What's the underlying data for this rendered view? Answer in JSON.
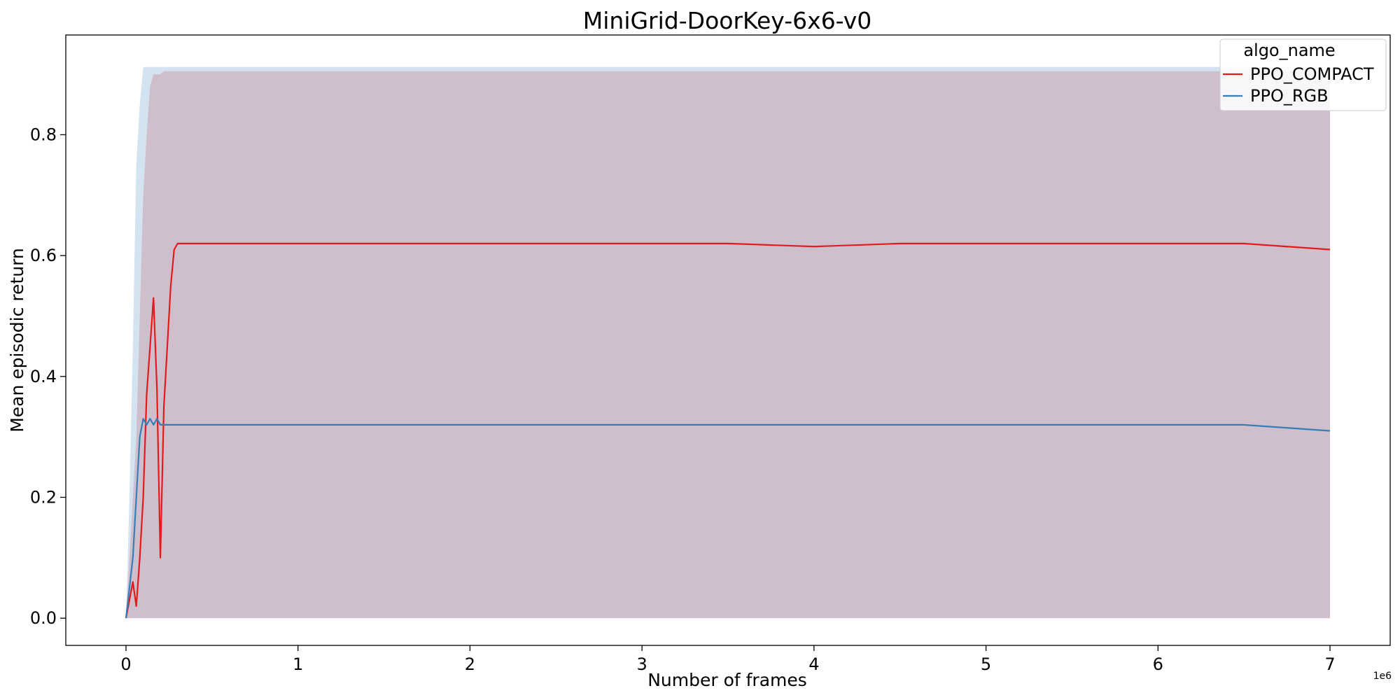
{
  "chart_data": {
    "type": "line",
    "title": "MiniGrid-DoorKey-6x6-v0",
    "xlabel": "Number of frames",
    "ylabel": "Mean episodic return",
    "x_scale_label": "1e6",
    "xlim": [
      -0.35,
      7.35
    ],
    "ylim": [
      -0.045,
      0.965
    ],
    "x_ticks": [
      0,
      1,
      2,
      3,
      4,
      5,
      6,
      7
    ],
    "x_tick_labels": [
      "0",
      "1",
      "2",
      "3",
      "4",
      "5",
      "6",
      "7"
    ],
    "y_ticks": [
      0.0,
      0.2,
      0.4,
      0.6,
      0.8
    ],
    "y_tick_labels": [
      "0.0",
      "0.2",
      "0.4",
      "0.6",
      "0.8"
    ],
    "grid": false,
    "legend": {
      "title": "algo_name",
      "placement": "top-right"
    },
    "series": [
      {
        "name": "PPO_COMPACT",
        "color": "#e41a1c",
        "band_color": "#e41a1c",
        "x": [
          0.0,
          0.02,
          0.04,
          0.06,
          0.08,
          0.1,
          0.12,
          0.14,
          0.16,
          0.18,
          0.2,
          0.22,
          0.24,
          0.26,
          0.28,
          0.3,
          0.5,
          1.0,
          1.5,
          2.0,
          2.5,
          3.0,
          3.5,
          4.0,
          4.5,
          5.0,
          5.5,
          6.0,
          6.5,
          7.0
        ],
        "y": [
          0.0,
          0.03,
          0.06,
          0.02,
          0.1,
          0.2,
          0.37,
          0.45,
          0.53,
          0.38,
          0.1,
          0.35,
          0.45,
          0.55,
          0.61,
          0.62,
          0.62,
          0.62,
          0.62,
          0.62,
          0.62,
          0.62,
          0.62,
          0.615,
          0.62,
          0.62,
          0.62,
          0.62,
          0.62,
          0.61
        ],
        "ci_upper": [
          0.0,
          0.1,
          0.2,
          0.3,
          0.5,
          0.7,
          0.8,
          0.88,
          0.9,
          0.9,
          0.9,
          0.905,
          0.905,
          0.905,
          0.905,
          0.905,
          0.905,
          0.905,
          0.905,
          0.905,
          0.905,
          0.905,
          0.905,
          0.905,
          0.905,
          0.905,
          0.905,
          0.905,
          0.905,
          0.905
        ],
        "ci_lower": [
          0.0,
          0.0,
          0.0,
          0.0,
          0.0,
          0.0,
          0.0,
          0.0,
          0.0,
          0.0,
          0.0,
          0.0,
          0.0,
          0.0,
          0.0,
          0.0,
          0.0,
          0.0,
          0.0,
          0.0,
          0.0,
          0.0,
          0.0,
          0.0,
          0.0,
          0.0,
          0.0,
          0.0,
          0.0,
          0.0
        ]
      },
      {
        "name": "PPO_RGB",
        "color": "#377eb8",
        "band_color": "#377eb8",
        "x": [
          0.0,
          0.02,
          0.04,
          0.06,
          0.08,
          0.1,
          0.12,
          0.14,
          0.16,
          0.18,
          0.2,
          0.3,
          0.5,
          1.0,
          1.5,
          2.0,
          2.5,
          3.0,
          3.5,
          4.0,
          4.5,
          5.0,
          5.5,
          6.0,
          6.5,
          7.0
        ],
        "y": [
          0.0,
          0.05,
          0.1,
          0.2,
          0.3,
          0.33,
          0.32,
          0.33,
          0.32,
          0.33,
          0.32,
          0.32,
          0.32,
          0.32,
          0.32,
          0.32,
          0.32,
          0.32,
          0.32,
          0.32,
          0.32,
          0.32,
          0.32,
          0.32,
          0.32,
          0.31
        ],
        "ci_upper": [
          0.0,
          0.2,
          0.45,
          0.75,
          0.85,
          0.912,
          0.912,
          0.912,
          0.912,
          0.912,
          0.912,
          0.912,
          0.912,
          0.912,
          0.912,
          0.912,
          0.912,
          0.912,
          0.912,
          0.912,
          0.912,
          0.912,
          0.912,
          0.912,
          0.912,
          0.912
        ],
        "ci_lower": [
          0.0,
          0.0,
          0.0,
          0.0,
          0.0,
          0.0,
          0.0,
          0.0,
          0.0,
          0.0,
          0.0,
          0.0,
          0.0,
          0.0,
          0.0,
          0.0,
          0.0,
          0.0,
          0.0,
          0.0,
          0.0,
          0.0,
          0.0,
          0.0,
          0.0,
          0.0
        ]
      }
    ]
  }
}
